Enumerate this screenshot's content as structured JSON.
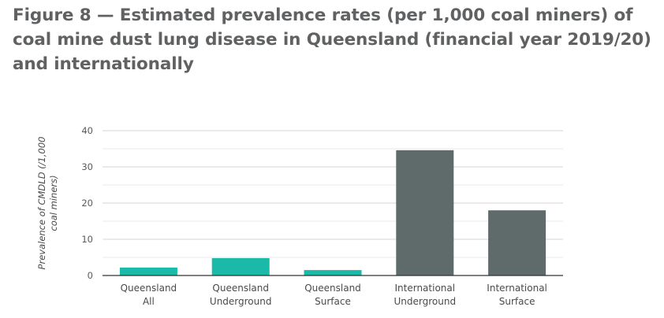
{
  "title": "Figure 8 — Estimated prevalence rates (per 1,000 coal miners) of coal mine dust lung disease in Queensland (financial year 2019/20) and internationally",
  "chart_data": {
    "type": "bar",
    "title": "Figure 8 — Estimated prevalence rates (per 1,000 coal miners) of coal mine dust lung disease in Queensland (financial year 2019/20) and internationally",
    "ylabel": "Prevalence of CMDLD (/1,000 coal miners)",
    "ylabel_lines": [
      "Prevalence of CMDLD (/1,000",
      "coal miners)"
    ],
    "xlabel": "",
    "ylim": [
      0,
      40
    ],
    "yticks": [
      0,
      10,
      20,
      30,
      40
    ],
    "grid": true,
    "categories": [
      [
        "Queensland",
        "All"
      ],
      [
        "Queensland",
        "Underground"
      ],
      [
        "Queensland",
        "Surface"
      ],
      [
        "International",
        "Underground"
      ],
      [
        "International",
        "Surface"
      ]
    ],
    "values": [
      2.2,
      4.8,
      1.5,
      34.6,
      18.0
    ],
    "bar_colors": [
      "#1ab9a8",
      "#1ab9a8",
      "#1ab9a8",
      "#5f6b6b",
      "#5f6b6b"
    ]
  }
}
